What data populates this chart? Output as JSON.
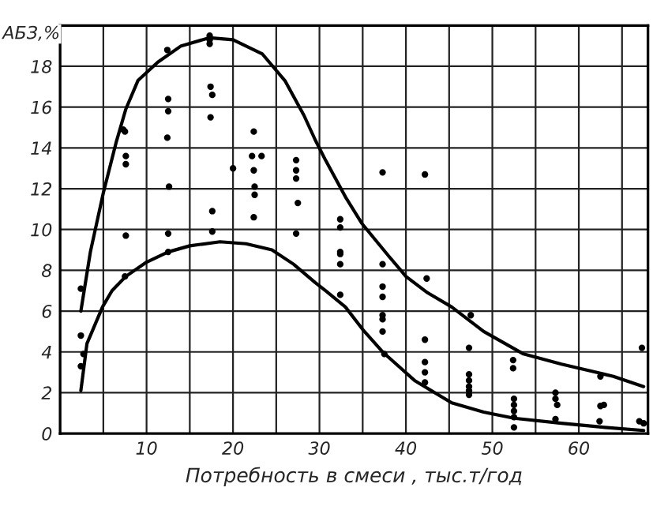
{
  "chart_data": {
    "type": "scatter",
    "xlabel": "Потребность в смеси , тыс.т/год",
    "ylabel": "АБЗ,%",
    "xlim": [
      0,
      68
    ],
    "ylim": [
      0,
      20
    ],
    "xticks": [
      {
        "value": 5,
        "label": null
      },
      10,
      {
        "value": 15,
        "label": null
      },
      20,
      {
        "value": 25,
        "label": null
      },
      30,
      {
        "value": 35,
        "label": null
      },
      40,
      {
        "value": 45,
        "label": null
      },
      50,
      {
        "value": 55,
        "label": null
      },
      60,
      {
        "value": 65,
        "label": null
      }
    ],
    "yticks": [
      0,
      2,
      4,
      6,
      8,
      10,
      12,
      14,
      16,
      18
    ],
    "grid": true,
    "marker": "circle",
    "series": [
      {
        "type": "scatter",
        "color": "#000000",
        "x": [
          7.3,
          7.5,
          7.6,
          7.6,
          7.6,
          12.4,
          12.5,
          12.5,
          12.4,
          12.6,
          12.5,
          17.3,
          17.3,
          17.3,
          17.4,
          17.6,
          17.4,
          17.6,
          17.6,
          20,
          22.4,
          22.2,
          23.3,
          22.4,
          22.5,
          22.5,
          22.4,
          27.3,
          27.3,
          27.3,
          27.5,
          27.3,
          37.3,
          42.2,
          32.4,
          32.4,
          32.4,
          2.4,
          7.5,
          12.5,
          2.4,
          2.7,
          2.4,
          32.4,
          32.4,
          32.4,
          37.3,
          37.3,
          37.3,
          37.3,
          37.3,
          37.3,
          37.5,
          42.4,
          42.2,
          42.2,
          42.2,
          42.2,
          47.5,
          47.3,
          47.3,
          47.3,
          47.3,
          47.3,
          47.3,
          52.4,
          52.4,
          52.5,
          52.5,
          52.5,
          52.5,
          52.5,
          57.3,
          57.3,
          57.5,
          57.3,
          62.5,
          62.9,
          62.5,
          62.4,
          67.3,
          67,
          67.5
        ],
        "values": [
          14.9,
          14.8,
          13.6,
          13.2,
          9.7,
          18.8,
          16.4,
          15.8,
          14.5,
          12.1,
          9.8,
          19.5,
          19.3,
          19.1,
          17.0,
          16.6,
          15.5,
          10.9,
          9.9,
          13.0,
          14.8,
          13.6,
          13.6,
          12.9,
          12.1,
          11.7,
          10.6,
          13.4,
          12.9,
          12.5,
          11.3,
          9.8,
          12.8,
          12.7,
          10.5,
          10.1,
          8.8,
          7.1,
          7.7,
          8.9,
          4.8,
          3.9,
          3.3,
          8.9,
          8.3,
          6.8,
          8.3,
          7.2,
          6.7,
          5.8,
          5.6,
          5.0,
          3.9,
          7.6,
          4.6,
          3.5,
          3.0,
          2.5,
          5.8,
          4.2,
          2.9,
          2.6,
          2.3,
          2.1,
          1.9,
          3.6,
          3.2,
          1.7,
          1.4,
          1.1,
          0.8,
          0.3,
          2.0,
          1.7,
          1.4,
          0.7,
          2.8,
          1.4,
          1.35,
          0.6,
          4.2,
          0.6,
          0.5
        ]
      },
      {
        "type": "line",
        "color": "#000000",
        "marker": "none",
        "x": [
          2.4,
          3.5,
          5,
          6.5,
          7.6,
          9,
          11.3,
          14,
          17.3,
          20,
          23.4,
          26,
          28.2,
          29.5,
          30.7,
          33,
          34.9,
          38,
          40,
          42.5,
          45.3,
          49,
          53.6,
          58,
          64,
          67.5
        ],
        "values": [
          6.0,
          8.9,
          11.8,
          14.3,
          15.9,
          17.3,
          18.2,
          19.0,
          19.4,
          19.3,
          18.6,
          17.3,
          15.6,
          14.4,
          13.4,
          11.6,
          10.3,
          8.7,
          7.7,
          6.9,
          6.2,
          5.0,
          3.9,
          3.4,
          2.8,
          2.3
        ]
      },
      {
        "type": "line",
        "color": "#000000",
        "marker": "none",
        "x": [
          2.4,
          3.1,
          4.9,
          6,
          7.6,
          10,
          12.5,
          15,
          18.5,
          21.5,
          24.5,
          27,
          29.5,
          30.7,
          33,
          35,
          37.3,
          41,
          45.3,
          49,
          52.5,
          58,
          63,
          67.5
        ],
        "values": [
          2.1,
          4.4,
          6.2,
          7.0,
          7.7,
          8.4,
          8.9,
          9.2,
          9.4,
          9.3,
          9.0,
          8.3,
          7.4,
          7.0,
          6.2,
          5.1,
          4.0,
          2.6,
          1.5,
          1.05,
          0.75,
          0.5,
          0.3,
          0.15
        ]
      }
    ]
  }
}
